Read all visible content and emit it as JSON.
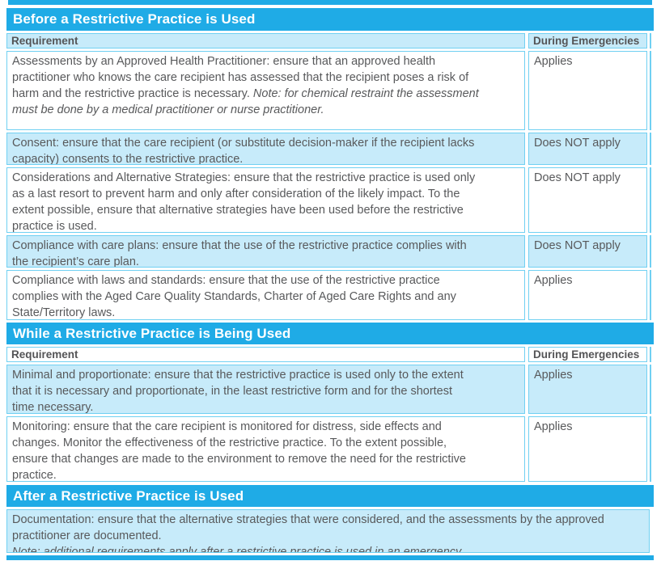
{
  "colors": {
    "accent_cyan": "#1FABE6",
    "alt_row_blue": "#C7EBFA",
    "cell_border": "#70D0F2",
    "body_text": "#58595B",
    "header_text": "#FFFFFF"
  },
  "table": {
    "sections": [
      {
        "title": "Before a Restrictive Practice is Used",
        "header": {
          "requirement": "Requirement",
          "emergencies": "During Emergencies"
        },
        "rows": [
          {
            "text": "Assessments by an Approved Health Practitioner: ensure that an approved health\npractitioner who knows the care recipient has assessed that the recipient poses a risk of\nharm and the restrictive practice is necessary. ",
            "note": "Note: for chemical restraint the assessment\nmust be done by a medical practitioner or nurse practitioner.",
            "emergency": "Applies"
          },
          {
            "text": "Consent: ensure that the care recipient (or substitute decision-maker if the recipient lacks\ncapacity) consents to the restrictive practice.",
            "emergency": "Does NOT apply"
          },
          {
            "text": "Considerations and Alternative Strategies: ensure that the restrictive practice is used only\nas a last resort to prevent harm and only after consideration of the likely impact. To the\nextent possible, ensure that alternative strategies have been used before the restrictive\npractice is used.",
            "emergency": "Does NOT apply"
          },
          {
            "text": "Compliance with care plans: ensure that the use of the restrictive practice complies with\nthe recipient’s care plan.",
            "emergency": "Does NOT apply"
          },
          {
            "text": "Compliance with laws and standards: ensure that the use of the restrictive practice\ncomplies with the Aged Care Quality Standards, Charter of Aged Care Rights and any\nState/Territory laws.",
            "emergency": "Applies"
          }
        ]
      },
      {
        "title": "While a Restrictive Practice is Being Used",
        "header": {
          "requirement": "Requirement",
          "emergencies": "During Emergencies"
        },
        "rows": [
          {
            "text": "Minimal and proportionate: ensure that the restrictive practice is used only to the extent\nthat it is necessary and proportionate, in the least restrictive form and for the shortest\ntime necessary.",
            "emergency": "Applies"
          },
          {
            "text": "Monitoring: ensure that the care recipient is monitored for distress, side effects and\nchanges. Monitor the effectiveness of the restrictive practice. To the extent possible,\nensure that changes are made to the environment to remove the need for the restrictive\npractice.",
            "emergency": "Applies"
          }
        ]
      },
      {
        "title": "After a Restrictive Practice is Used",
        "rows": [
          {
            "text": "Documentation: ensure that the alternative strategies that were considered, and the assessments by the approved\npractitioner are documented.\n",
            "note": "Note: additional requirements apply after a restrictive practice is used in an emergency."
          }
        ]
      }
    ]
  }
}
